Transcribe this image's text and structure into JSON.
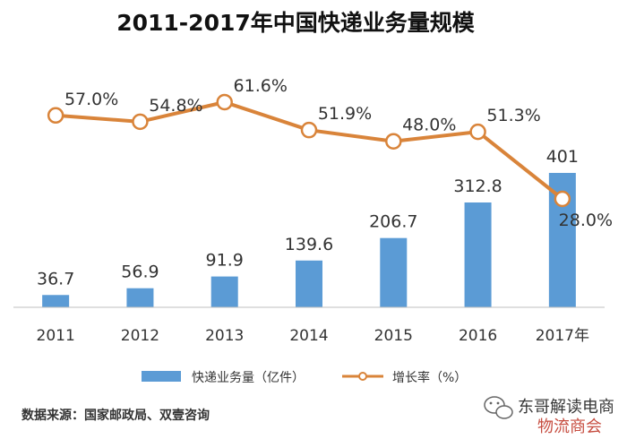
{
  "chart_data": {
    "type": "bar+line",
    "title": "2011-2017年中国快递业务量规模",
    "categories": [
      "2011",
      "2012",
      "2013",
      "2014",
      "2015",
      "2016",
      "2017年"
    ],
    "series": [
      {
        "name": "快递业务量（亿件）",
        "type": "bar",
        "values": [
          36.7,
          56.9,
          91.9,
          139.6,
          206.7,
          312.8,
          401
        ],
        "labels": [
          "36.7",
          "56.9",
          "91.9",
          "139.6",
          "206.7",
          "312.8",
          "401"
        ]
      },
      {
        "name": "增长率（%）",
        "type": "line",
        "values": [
          57.0,
          54.8,
          61.6,
          51.9,
          48.0,
          51.3,
          28.0
        ],
        "labels": [
          "57.0%",
          "54.8%",
          "61.6%",
          "51.9%",
          "48.0%",
          "51.3%",
          "28.0%"
        ]
      }
    ],
    "bar_color": "#5b9bd5",
    "line_color": "#d9843a",
    "legend_position": "bottom",
    "grid": false
  },
  "source": "数据来源：国家邮政局、双壹咨询",
  "watermark": {
    "line1": "东哥解读电商",
    "line2": "物流商会"
  }
}
